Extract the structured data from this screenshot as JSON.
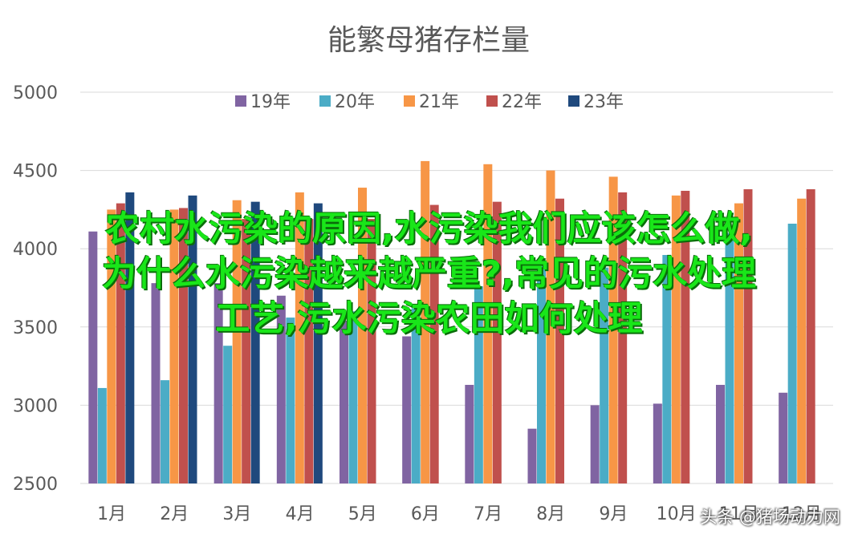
{
  "chart_data": {
    "type": "bar",
    "title": "能繁母猪存栏量",
    "categories": [
      "1月",
      "2月",
      "3月",
      "4月",
      "5月",
      "6月",
      "7月",
      "8月",
      "9月",
      "10月",
      "11月",
      "12月"
    ],
    "ylim": [
      2500,
      5000
    ],
    "yticks": [
      2500,
      3000,
      3500,
      4000,
      4500,
      5000
    ],
    "grid": true,
    "legend_position": "top",
    "series": [
      {
        "name": "19年",
        "color": "#8064a2",
        "values": [
          4110,
          3780,
          3780,
          3700,
          3540,
          3440,
          3130,
          2850,
          3000,
          3010,
          3130,
          3080
        ]
      },
      {
        "name": "20年",
        "color": "#4bacc6",
        "values": [
          3110,
          3160,
          3380,
          3560,
          3600,
          3620,
          3760,
          3920,
          3880,
          3960,
          4100,
          4160
        ]
      },
      {
        "name": "21年",
        "color": "#f79646",
        "values": [
          4250,
          4250,
          4310,
          4360,
          4390,
          4560,
          4540,
          4500,
          4460,
          4340,
          4290,
          4320
        ]
      },
      {
        "name": "22年",
        "color": "#c0504d",
        "values": [
          4290,
          4260,
          4190,
          4190,
          4190,
          4280,
          4300,
          4320,
          4360,
          4370,
          4380,
          4380
        ]
      },
      {
        "name": "23年",
        "color": "#1f497d",
        "values": [
          4360,
          4340,
          4300,
          4290,
          null,
          null,
          null,
          null,
          null,
          null,
          null,
          null
        ]
      }
    ]
  },
  "overlay": {
    "line1": "农村水污染的原因,水污染我们应该怎么做,",
    "line2": "为什么水污染越来越严重?,常见的污水处理",
    "line3": "工艺,污水污染农田如何处理"
  },
  "watermark": "头条 @猪场动力网"
}
